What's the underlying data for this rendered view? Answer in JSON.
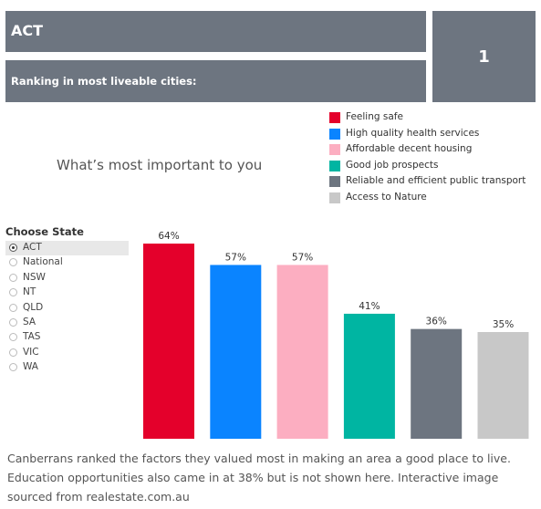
{
  "header": {
    "state_name": "ACT",
    "ranking_label": "Ranking in most liveable cities:",
    "ranking_value": "1"
  },
  "chart_title": "What’s most important to you",
  "legend": [
    {
      "label": "Feeling safe",
      "color": "#e4002b"
    },
    {
      "label": "High quality health services",
      "color": "#0a84ff"
    },
    {
      "label": "Affordable decent housing",
      "color": "#fcaec1"
    },
    {
      "label": "Good job prospects",
      "color": "#00b5a2"
    },
    {
      "label": "Reliable and efficient public transport",
      "color": "#6d7580"
    },
    {
      "label": "Access to Nature",
      "color": "#c8c8c8"
    }
  ],
  "state_filter": {
    "title": "Choose State",
    "options": [
      "ACT",
      "National",
      "NSW",
      "NT",
      "QLD",
      "SA",
      "TAS",
      "VIC",
      "WA"
    ],
    "selected": "ACT"
  },
  "chart_data": {
    "type": "bar",
    "categories": [
      "Feeling safe",
      "High quality health services",
      "Affordable decent housing",
      "Good job prospects",
      "Reliable and efficient public transport",
      "Access to Nature"
    ],
    "values": [
      64,
      57,
      57,
      41,
      36,
      35
    ],
    "data_labels": [
      "64%",
      "57%",
      "57%",
      "41%",
      "36%",
      "35%"
    ],
    "colors": [
      "#e4002b",
      "#0a84ff",
      "#fcaec1",
      "#00b5a2",
      "#6d7580",
      "#c8c8c8"
    ],
    "ylim": [
      0,
      70
    ],
    "grid": false,
    "legend_position": "top-right"
  },
  "caption": "Canberrans ranked the factors they valued most in making an area a good place to live. Education opportunities also came in at 38% but is not shown here. Interactive image sourced from realestate.com.au"
}
